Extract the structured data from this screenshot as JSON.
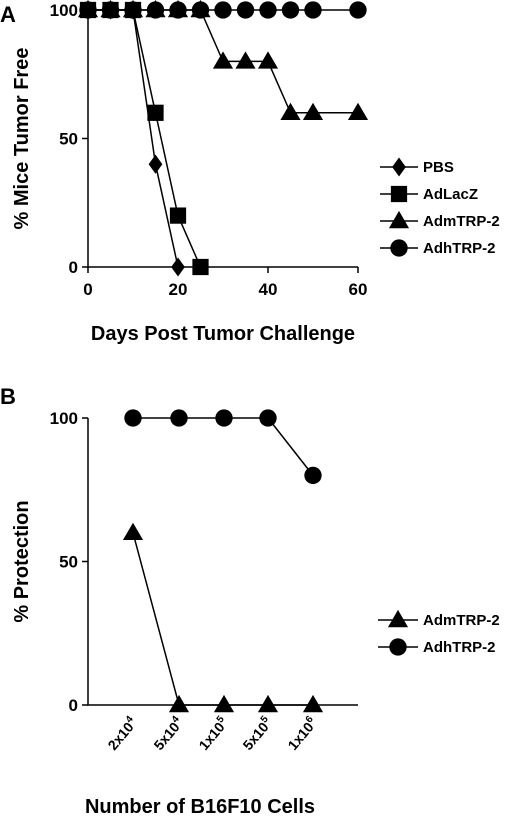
{
  "chart_data": [
    {
      "panel_letter": "A",
      "type": "line",
      "xlabel": "Days Post Tumor Challenge",
      "ylabel": "% Mice Tumor Free",
      "xlim": [
        0,
        60
      ],
      "ylim": [
        0,
        100
      ],
      "x_ticks": [
        "0",
        "20",
        "40",
        "60"
      ],
      "x_tick_values": [
        0,
        20,
        40,
        60
      ],
      "y_ticks": [
        "0",
        "50",
        "100"
      ],
      "y_tick_values": [
        0,
        50,
        100
      ],
      "grid": false,
      "legend_position": "right",
      "series": [
        {
          "name": "PBS",
          "marker": "diamond",
          "x": [
            0,
            5,
            10,
            15,
            20
          ],
          "y": [
            100,
            100,
            100,
            40,
            0
          ]
        },
        {
          "name": "AdLacZ",
          "marker": "square",
          "x": [
            0,
            5,
            10,
            15,
            20,
            25
          ],
          "y": [
            100,
            100,
            100,
            60,
            20,
            0
          ]
        },
        {
          "name": "AdmTRP-2",
          "marker": "triangle",
          "x": [
            0,
            5,
            10,
            15,
            20,
            25,
            30,
            35,
            40,
            45,
            50,
            60
          ],
          "y": [
            100,
            100,
            100,
            100,
            100,
            100,
            80,
            80,
            80,
            60,
            60,
            60
          ]
        },
        {
          "name": "AdhTRP-2",
          "marker": "circle",
          "x": [
            0,
            5,
            10,
            15,
            20,
            25,
            30,
            35,
            40,
            45,
            50,
            60
          ],
          "y": [
            100,
            100,
            100,
            100,
            100,
            100,
            100,
            100,
            100,
            100,
            100,
            100
          ]
        }
      ]
    },
    {
      "panel_letter": "B",
      "type": "line",
      "xlabel": "Number of B16F10 Cells",
      "ylabel": "% Protection",
      "ylim": [
        0,
        100
      ],
      "categories": [
        {
          "base": "2x10",
          "exp": "4"
        },
        {
          "base": "5x10",
          "exp": "4"
        },
        {
          "base": "1x10",
          "exp": "5"
        },
        {
          "base": "5x10",
          "exp": "5"
        },
        {
          "base": "1x10",
          "exp": "6"
        }
      ],
      "y_ticks": [
        "0",
        "50",
        "100"
      ],
      "y_tick_values": [
        0,
        50,
        100
      ],
      "grid": false,
      "legend_position": "right",
      "series": [
        {
          "name": "AdmTRP-2",
          "marker": "triangle",
          "values": [
            60,
            0,
            0,
            0,
            0
          ]
        },
        {
          "name": "AdhTRP-2",
          "marker": "circle",
          "values": [
            100,
            100,
            100,
            100,
            80
          ]
        }
      ]
    }
  ]
}
